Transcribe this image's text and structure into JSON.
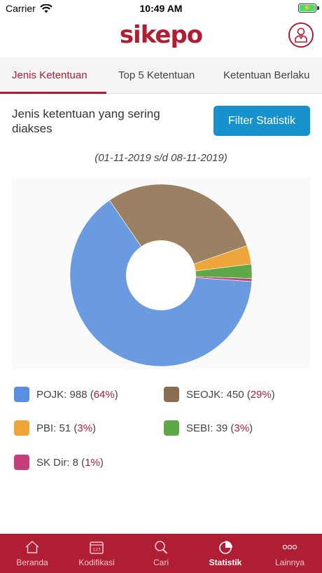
{
  "status_bar": {
    "carrier": "Carrier",
    "time": "10:49 AM"
  },
  "header": {
    "logo": "sikepo",
    "profile_icon": "user-icon"
  },
  "tabs": [
    {
      "label": "Jenis Ketentuan",
      "active": true
    },
    {
      "label": "Top 5 Ketentuan",
      "active": false
    },
    {
      "label": "Ketentuan Berlaku",
      "active": false
    }
  ],
  "content": {
    "intro": "Jenis ketentuan yang sering diakses",
    "filter_button": "Filter Statistik",
    "date_range": "(01-11-2019 s/d 08-11-2019)"
  },
  "chart_data": {
    "type": "pie",
    "categories": [
      "POJK",
      "SEOJK",
      "PBI",
      "SEBI",
      "SK Dir"
    ],
    "values": [
      988,
      450,
      51,
      39,
      8
    ],
    "colors": [
      "#6a9be0",
      "#9c8064",
      "#eea63b",
      "#5ea84a",
      "#c43e7c"
    ],
    "donut": true
  },
  "legend": [
    {
      "label": "POJK: 988 (",
      "pct": "64%",
      "close": ")",
      "color": "#5a8ee0"
    },
    {
      "label": "SEOJK: 450 (",
      "pct": "29%",
      "close": ")",
      "color": "#8b6e52"
    },
    {
      "label": "PBI: 51 (",
      "pct": "3%",
      "close": ")",
      "color": "#eea63b"
    },
    {
      "label": "SEBI: 39 (",
      "pct": "3%",
      "close": ")",
      "color": "#5ea84a"
    },
    {
      "label": "SK Dir: 8 (",
      "pct": "1%",
      "close": ")",
      "color": "#c43e7c"
    }
  ],
  "nav": [
    {
      "label": "Beranda",
      "icon": "home-icon",
      "active": false
    },
    {
      "label": "Kodifikasi",
      "icon": "calendar-icon",
      "active": false
    },
    {
      "label": "Cari",
      "icon": "search-icon",
      "active": false
    },
    {
      "label": "Statistik",
      "icon": "chart-icon",
      "active": true
    },
    {
      "label": "Lainnya",
      "icon": "more-icon",
      "active": false
    }
  ]
}
